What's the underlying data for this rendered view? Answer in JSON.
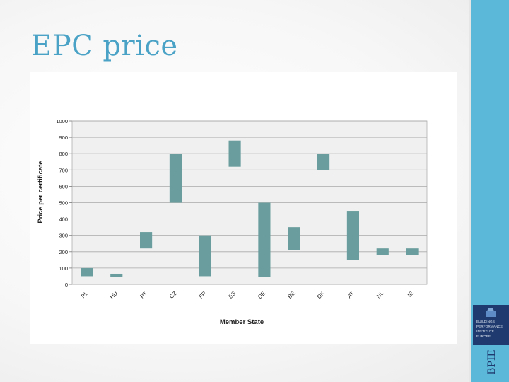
{
  "slide": {
    "title": "EPC price",
    "logo_text": "BPIE",
    "logo_lines": [
      "BUILDINGS",
      "PERFORMANCE",
      "INSTITUTE",
      "EUROPE"
    ]
  },
  "colors": {
    "accent": "#5bb8d9",
    "title": "#4aa3c6",
    "bar": "#6a9e9e",
    "plot_background": "#f0f0f0",
    "logo": "#1f3a6e"
  },
  "chart_data": {
    "type": "bar",
    "subtype": "floating-range",
    "title": "",
    "xlabel": "Member State",
    "ylabel": "Price per certificate",
    "ylim": [
      0,
      1000
    ],
    "yticks": [
      0,
      100,
      200,
      300,
      400,
      500,
      600,
      700,
      800,
      900,
      1000
    ],
    "grid": true,
    "legend": "none",
    "categories": [
      "PL",
      "HU",
      "PT",
      "CZ",
      "FR",
      "ES",
      "DE",
      "BE",
      "DK",
      "AT",
      "NL",
      "IE"
    ],
    "series": [
      {
        "low": [
          50,
          45,
          220,
          500,
          50,
          720,
          45,
          210,
          700,
          150,
          180,
          180
        ],
        "high": [
          100,
          65,
          320,
          800,
          300,
          880,
          500,
          350,
          800,
          450,
          220,
          220
        ]
      }
    ]
  }
}
